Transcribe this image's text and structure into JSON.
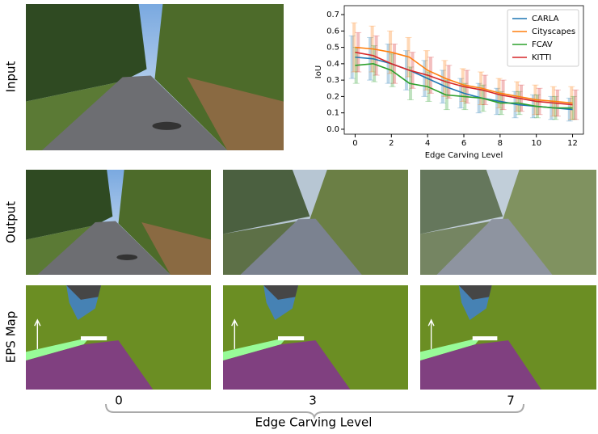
{
  "chart_data": {
    "type": "line",
    "xlabel": "Edge Carving Level",
    "ylabel": "IoU",
    "x": [
      0,
      1,
      2,
      3,
      4,
      5,
      6,
      7,
      8,
      9,
      10,
      11,
      12
    ],
    "xlim": [
      -0.6,
      12.6
    ],
    "xticks": [
      0,
      2,
      4,
      6,
      8,
      10,
      12
    ],
    "ylim": [
      -0.03,
      0.73
    ],
    "yticks": [
      {
        "value": 0,
        "label": "0.0"
      },
      0.1,
      0.2,
      0.3,
      0.4,
      0.5,
      0.6,
      0.7
    ],
    "legend": "upper right",
    "series": [
      {
        "name": "CARLA",
        "color": "#1f77b4",
        "values": [
          0.44,
          0.43,
          0.4,
          0.36,
          0.31,
          0.26,
          0.22,
          0.19,
          0.17,
          0.15,
          0.14,
          0.13,
          0.12
        ],
        "errors": [
          0.13,
          0.13,
          0.12,
          0.12,
          0.11,
          0.1,
          0.09,
          0.09,
          0.08,
          0.08,
          0.07,
          0.07,
          0.07
        ]
      },
      {
        "name": "Cityscapes",
        "color": "#ff7f0e",
        "values": [
          0.5,
          0.49,
          0.47,
          0.44,
          0.36,
          0.31,
          0.27,
          0.25,
          0.22,
          0.2,
          0.18,
          0.17,
          0.16
        ],
        "errors": [
          0.15,
          0.14,
          0.13,
          0.12,
          0.12,
          0.11,
          0.1,
          0.1,
          0.09,
          0.09,
          0.09,
          0.09,
          0.1
        ]
      },
      {
        "name": "FCAV",
        "color": "#2ca02c",
        "values": [
          0.39,
          0.4,
          0.36,
          0.28,
          0.26,
          0.21,
          0.2,
          0.19,
          0.16,
          0.16,
          0.14,
          0.13,
          0.13
        ],
        "errors": [
          0.11,
          0.11,
          0.1,
          0.1,
          0.09,
          0.09,
          0.08,
          0.08,
          0.07,
          0.07,
          0.07,
          0.07,
          0.07
        ]
      },
      {
        "name": "KITTI",
        "color": "#d62728",
        "values": [
          0.47,
          0.45,
          0.4,
          0.36,
          0.33,
          0.29,
          0.26,
          0.24,
          0.21,
          0.19,
          0.17,
          0.16,
          0.15
        ],
        "errors": [
          0.12,
          0.12,
          0.12,
          0.11,
          0.11,
          0.1,
          0.1,
          0.09,
          0.09,
          0.08,
          0.08,
          0.08,
          0.09
        ]
      }
    ]
  },
  "rows": [
    "Input",
    "Output",
    "EPS Map"
  ],
  "levels": [
    "0",
    "3",
    "7"
  ],
  "levels_label": "Edge Carving Level"
}
